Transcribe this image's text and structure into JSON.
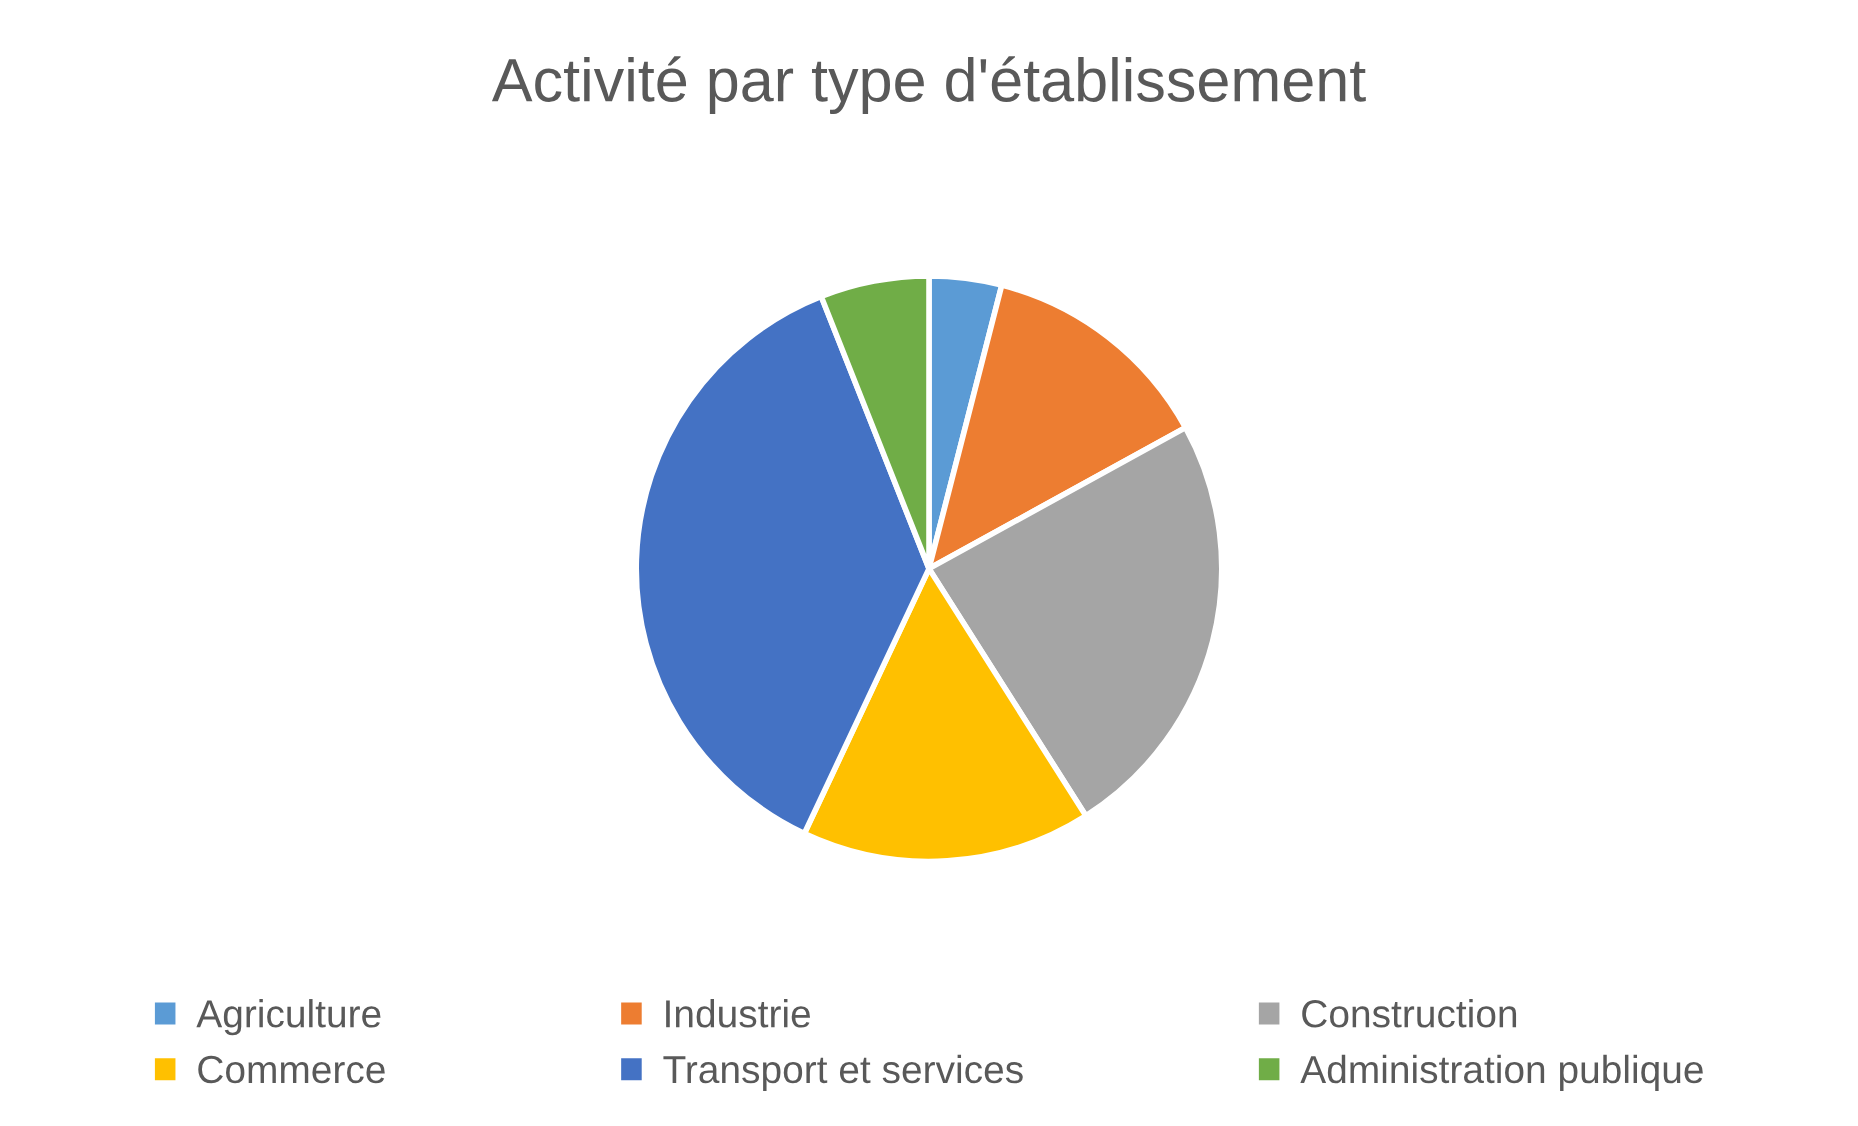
{
  "chart_data": {
    "type": "pie",
    "title": "Activité par type d'établissement",
    "categories": [
      "Agriculture",
      "Industrie",
      "Construction",
      "Commerce",
      "Transport et services",
      "Administration publique"
    ],
    "values": [
      4,
      13,
      24,
      16,
      37,
      6
    ],
    "colors": [
      "#5b9bd5",
      "#ed7d31",
      "#a5a5a5",
      "#ffc000",
      "#4472c4",
      "#70ad47"
    ],
    "legend": "bottom"
  }
}
